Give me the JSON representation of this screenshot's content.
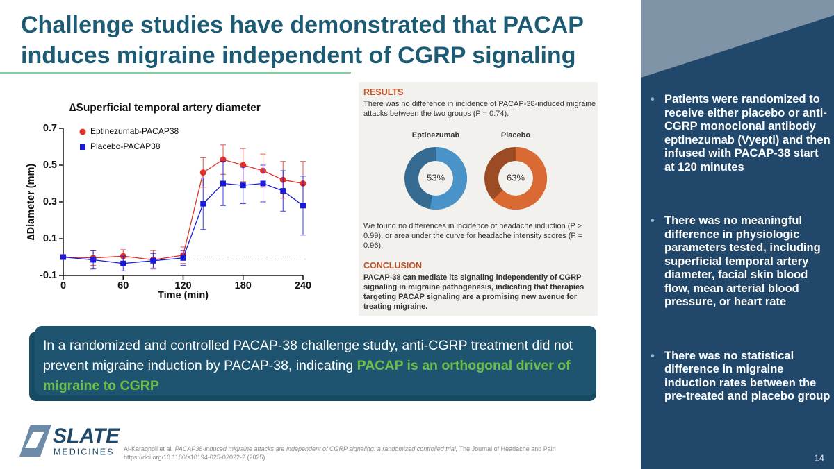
{
  "header": {
    "title": "Challenge studies have demonstrated that PACAP induces migraine independent of CGRP signaling"
  },
  "chart_data": [
    {
      "type": "line",
      "title": "∆Superficial temporal artery diameter",
      "x_label": "Time (min)",
      "y_label": "∆Diameter (mm)",
      "x": [
        0,
        30,
        60,
        90,
        120,
        140,
        160,
        180,
        200,
        220,
        240
      ],
      "series": [
        {
          "name": "Eptinezumab-PACAP38",
          "color": "#e0322a",
          "marker": "circle",
          "values": [
            0,
            -0.005,
            0.005,
            -0.015,
            0.01,
            0.46,
            0.53,
            0.5,
            0.47,
            0.42,
            0.4
          ],
          "errors": [
            0.01,
            0.04,
            0.035,
            0.05,
            0.045,
            0.08,
            0.08,
            0.09,
            0.09,
            0.1,
            0.12
          ]
        },
        {
          "name": "Placebo-PACAP38",
          "color": "#1a1adb",
          "marker": "square",
          "values": [
            0,
            -0.015,
            -0.035,
            -0.02,
            -0.005,
            0.29,
            0.4,
            0.39,
            0.4,
            0.36,
            0.28
          ],
          "errors": [
            0.01,
            0.05,
            0.04,
            0.04,
            0.04,
            0.14,
            0.12,
            0.1,
            0.1,
            0.11,
            0.16
          ]
        }
      ],
      "reference_y": 0,
      "xlim": [
        0,
        240
      ],
      "ylim": [
        -0.1,
        0.7
      ],
      "xticks": [
        0,
        60,
        120,
        180,
        240
      ],
      "yticks": [
        -0.1,
        0.1,
        0.3,
        0.5,
        0.7
      ],
      "legend": "top-left"
    },
    {
      "type": "donut",
      "categories": [
        "Eptinezumab",
        "Placebo"
      ],
      "values": [
        53,
        63
      ],
      "value_labels": [
        "53%",
        "63%"
      ],
      "colors": [
        "#4a93c9",
        "#d96a33"
      ]
    }
  ],
  "results_panel": {
    "results_heading": "RESULTS",
    "results_text": "There was no difference in incidence of PACAP-38-induced migraine attacks between the two groups (P = 0.74).",
    "findings_text": "We found no differences in incidence of headache induction (P > 0.99), or area under the curve for headache intensity scores (P = 0.96).",
    "conclusion_heading": "CONCLUSION",
    "conclusion_text": "PACAP-38 can mediate its signaling independently of CGRP signaling in migraine pathogenesis, indicating that therapies targeting PACAP signaling are a promising new avenue for treating migraine."
  },
  "callout": {
    "text": "In a randomized and controlled PACAP-38 challenge study, anti-CGRP treatment did not prevent migraine induction by PACAP-38, indicating ",
    "highlight": "PACAP is an orthogonal driver of migraine to CGRP"
  },
  "sidebar": {
    "bullets": [
      "Patients were randomized to receive either placebo or anti-CGRP monoclonal antibody eptinezumab (Vyepti) and then infused with PACAP-38 start at 120 minutes",
      "There was no meaningful difference in physiologic parameters tested, including superficial temporal artery diameter, facial skin blood flow, mean arterial blood pressure, or heart rate",
      "There was no statistical difference in migraine induction rates between the pre-treated and placebo group"
    ]
  },
  "logo": {
    "name": "SLATE",
    "subtitle": "MEDICINES"
  },
  "footer": {
    "authors": "Al-Karagholi et al.",
    "article": "PACAP38-induced migraine attacks are independent of CGRP signaling: a randomized controlled trial,",
    "journal": "The Journal of Headache and Pain",
    "doi": "https://doi.org/10.1186/s10194-025-02022-2 (2025)",
    "page": "14"
  }
}
